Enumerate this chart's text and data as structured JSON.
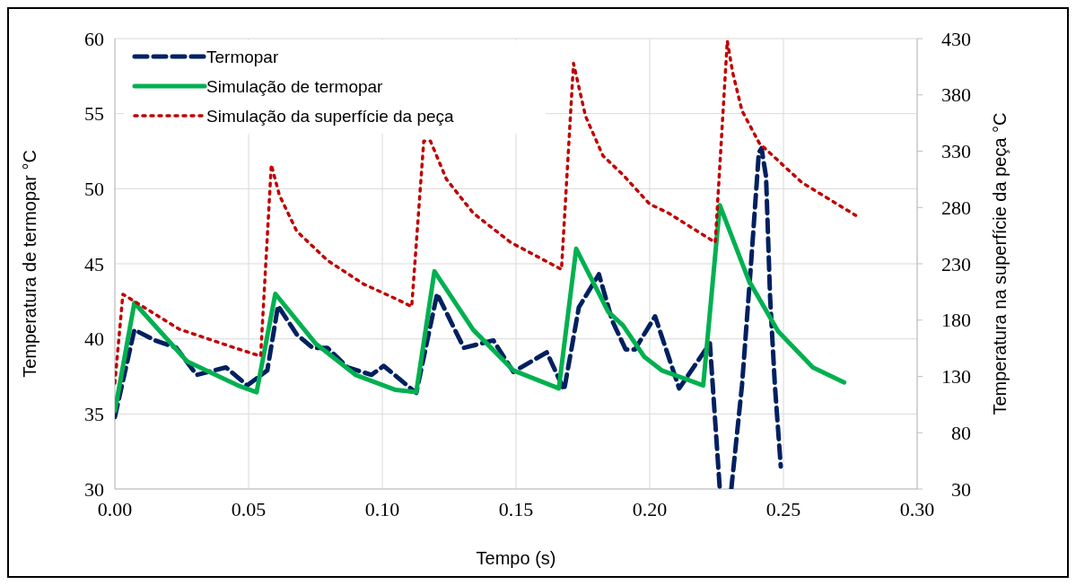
{
  "chart_data": {
    "type": "line",
    "xlabel": "Tempo (s)",
    "ylabel": "Temperatura de termopar °C",
    "y2label": "Temperatura na superfície da peça °C",
    "xlim": [
      0,
      0.3
    ],
    "xticks": [
      {
        "value": 0,
        "label": "0.00"
      },
      {
        "value": 0.05,
        "label": "0.05"
      },
      {
        "value": 0.1,
        "label": "0.10"
      },
      {
        "value": 0.15,
        "label": "0.15"
      },
      {
        "value": 0.2,
        "label": "0.20"
      },
      {
        "value": 0.25,
        "label": "0.25"
      },
      {
        "value": 0.3,
        "label": "0.30"
      }
    ],
    "ylim": [
      30,
      60
    ],
    "yticks": [
      30,
      35,
      40,
      45,
      50,
      55,
      60
    ],
    "y2lim": [
      30,
      430
    ],
    "y2ticks": [
      30,
      80,
      130,
      180,
      230,
      280,
      330,
      380,
      430
    ],
    "grid": true,
    "legend": "top left",
    "series": [
      {
        "name": "Termopar",
        "color": "#002060",
        "line_style": "dashed",
        "x": [
          0,
          0.0073,
          0.015,
          0.023,
          0.0306,
          0.0415,
          0.0495,
          0.057,
          0.061,
          0.068,
          0.074,
          0.0795,
          0.087,
          0.096,
          0.1005,
          0.1127,
          0.1205,
          0.1305,
          0.1415,
          0.149,
          0.1615,
          0.168,
          0.1735,
          0.181,
          0.186,
          0.191,
          0.1945,
          0.202,
          0.211,
          0.2225,
          0.2262,
          0.228,
          0.2305,
          0.2345,
          0.2378,
          0.2408,
          0.2418,
          0.2435,
          0.245,
          0.2468,
          0.249
        ],
        "values": [
          34.8,
          40.6,
          39.9,
          39.4,
          37.6,
          38.1,
          36.9,
          37.9,
          42.2,
          40.3,
          39.4,
          39.4,
          38.1,
          37.6,
          38.2,
          36.4,
          43.0,
          39.4,
          39.9,
          37.8,
          39.1,
          36.6,
          42.1,
          44.3,
          41.2,
          39.3,
          39.3,
          41.5,
          36.7,
          39.7,
          30,
          null,
          30,
          36.9,
          44.8,
          52.4,
          52.7,
          50.8,
          42.8,
          36.9,
          31.5
        ]
      },
      {
        "name": "Simulação de termopar",
        "color": "#00b050",
        "line_style": "solid",
        "x": [
          0,
          0.0073,
          0.027,
          0.046,
          0.053,
          0.06,
          0.075,
          0.09,
          0.105,
          0.1127,
          0.1195,
          0.134,
          0.149,
          0.166,
          0.1725,
          0.1845,
          0.19,
          0.198,
          0.2045,
          0.22,
          0.2262,
          0.237,
          0.248,
          0.261,
          0.2727
        ],
        "values": [
          35.2,
          42.4,
          38.5,
          36.9,
          36.45,
          43.0,
          39.7,
          37.6,
          36.6,
          36.45,
          44.5,
          40.6,
          37.9,
          36.7,
          46.0,
          41.8,
          40.9,
          38.8,
          37.9,
          36.9,
          48.9,
          43.9,
          40.5,
          38.1,
          37.1
        ]
      },
      {
        "name": "Simulação da superfície da peça",
        "color": "#c00000",
        "line_style": "dotted",
        "axis": "y2",
        "x": [
          0,
          0.003,
          0.024,
          0.044,
          0.0545,
          0.0585,
          0.0615,
          0.068,
          0.0795,
          0.093,
          0.105,
          0.111,
          0.1155,
          0.118,
          0.124,
          0.134,
          0.148,
          0.167,
          0.1715,
          0.176,
          0.1825,
          0.19,
          0.2,
          0.207,
          0.2245,
          0.229,
          0.231,
          0.2345,
          0.241,
          0.257,
          0.277
        ],
        "values": [
          124,
          203,
          172,
          156,
          148,
          318,
          291,
          259,
          233,
          212,
          199,
          192,
          339,
          339,
          305,
          275,
          249,
          225,
          408,
          361,
          326,
          309,
          283,
          275,
          249,
          428,
          400,
          366,
          337,
          302,
          273
        ]
      }
    ]
  }
}
